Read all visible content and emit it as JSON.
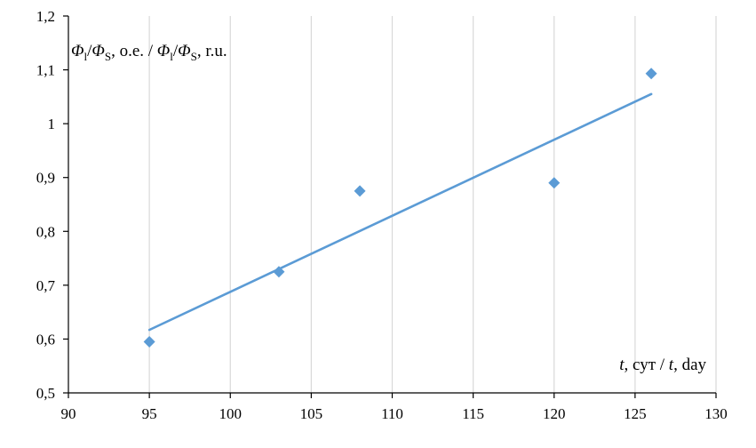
{
  "chart_data": {
    "type": "scatter",
    "ylabel_parts": {
      "phi": "Φ",
      "sub_l": "l",
      "slash": "/",
      "sub_s": "S",
      "ru_suffix_1": ", o.e. / ",
      "ru_suffix_2": ", r.u."
    },
    "xlabel_parts": {
      "t": "t",
      "mid": ", сут / ",
      "end": ", day"
    },
    "xlim": [
      90,
      130
    ],
    "ylim": [
      0.5,
      1.2
    ],
    "x_ticks": [
      90,
      95,
      100,
      105,
      110,
      115,
      120,
      125,
      130
    ],
    "x_tick_labels": [
      "90",
      "95",
      "100",
      "105",
      "110",
      "115",
      "120",
      "125",
      "130"
    ],
    "y_ticks": [
      0.5,
      0.6,
      0.7,
      0.8,
      0.9,
      1.0,
      1.1,
      1.2
    ],
    "y_tick_labels": [
      "0,5",
      "0,6",
      "0,7",
      "0,8",
      "0,9",
      "1",
      "1,1",
      "1,2"
    ],
    "grid": "vertical",
    "series": [
      {
        "marker": "diamond",
        "color": "#5b9bd5",
        "x": [
          95,
          103,
          108,
          120,
          126
        ],
        "y": [
          0.595,
          0.725,
          0.875,
          0.89,
          1.093
        ]
      }
    ],
    "trendline": {
      "type": "linear",
      "color": "#5b9bd5",
      "x": [
        95,
        126
      ],
      "y": [
        0.617,
        1.055
      ]
    }
  }
}
